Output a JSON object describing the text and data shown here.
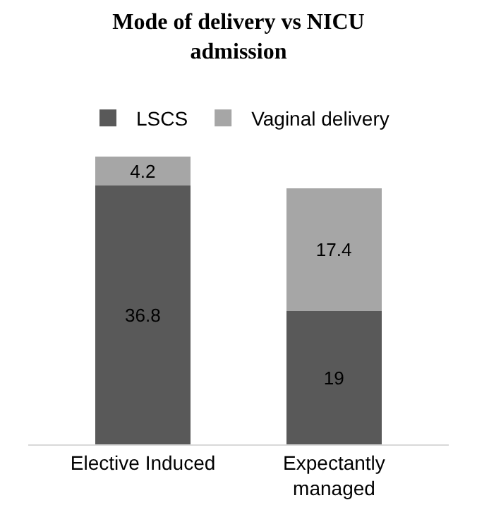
{
  "chart_data": {
    "type": "bar",
    "title": "Mode of delivery vs NICU admission",
    "categories": [
      "Elective Induced",
      "Expectantly managed"
    ],
    "stacked": true,
    "data_labels": true,
    "legend": "top",
    "series": [
      {
        "name": "LSCS",
        "color": "#595959",
        "values": [
          36.8,
          19
        ]
      },
      {
        "name": "Vaginal delivery",
        "color": "#a6a6a6",
        "values": [
          4.2,
          17.4
        ]
      }
    ]
  }
}
